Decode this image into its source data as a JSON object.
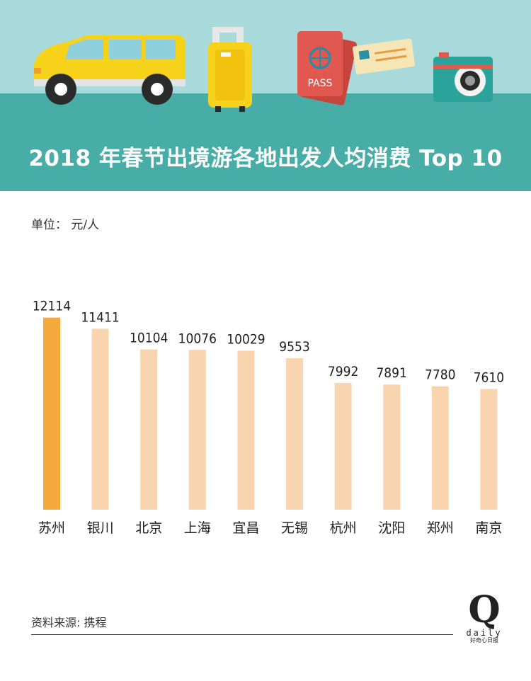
{
  "header": {
    "title": "2018 年春节出境游各地出发人均消费 Top 10",
    "passport_text": "PASS"
  },
  "unit_label": "单位： 元/人",
  "source_label": "资料来源: 携程",
  "logo": {
    "mark": "Q",
    "word": "daily",
    "cn": "好奇心日报"
  },
  "colors": {
    "sky": "#a9dadb",
    "band": "#48ada7",
    "highlight_bar": "#f6a93b",
    "bar": "#f8d5ae",
    "text": "#333333"
  },
  "chart_data": {
    "type": "bar",
    "categories": [
      "苏州",
      "银川",
      "北京",
      "上海",
      "宜昌",
      "无锡",
      "杭州",
      "沈阳",
      "郑州",
      "南京"
    ],
    "values": [
      12114,
      11411,
      10104,
      10076,
      10029,
      9553,
      7992,
      7891,
      7780,
      7610
    ],
    "highlight_index": 0,
    "title": "2018 年春节出境游各地出发人均消费 Top 10",
    "xlabel": "",
    "ylabel": "",
    "ylim": [
      0,
      13000
    ],
    "grid": false,
    "legend": "none"
  }
}
